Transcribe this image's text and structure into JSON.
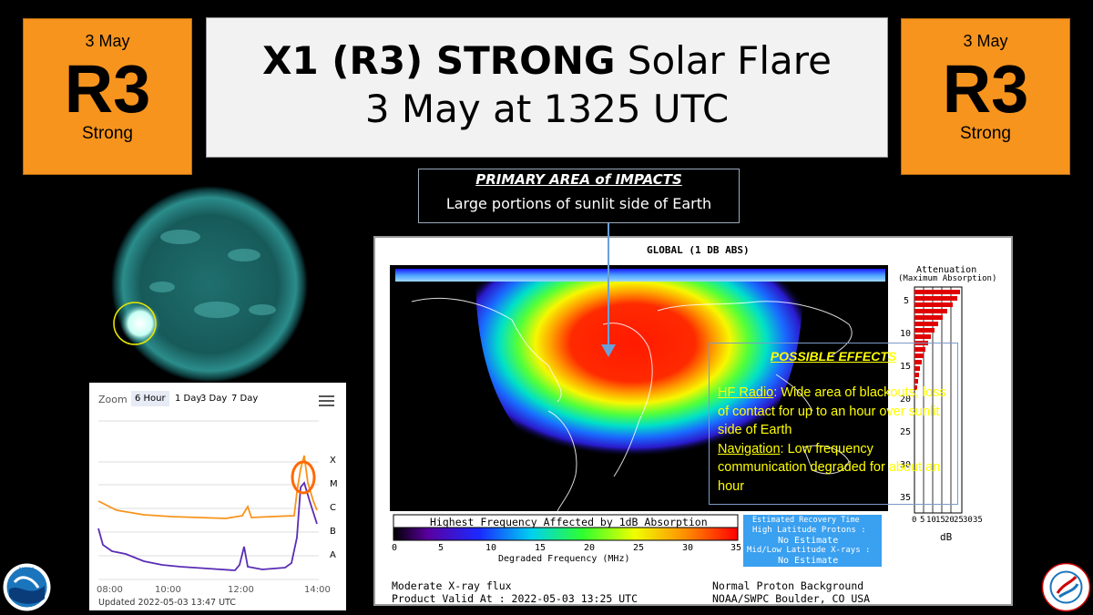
{
  "badges": [
    {
      "date": "3 May",
      "scale": "R3",
      "level": "Strong"
    },
    {
      "date": "3 May",
      "scale": "R3",
      "level": "Strong"
    }
  ],
  "title": {
    "bold": "X1 (R3) STRONG",
    "rest": " Solar Flare",
    "line2": "3 May at 1325 UTC"
  },
  "impact": {
    "heading": "PRIMARY AREA of IMPACTS",
    "text": "Large portions of sunlit side of Earth"
  },
  "effects": {
    "heading": "POSSIBLE EFFECTS",
    "hf_label": "HF Radio",
    "hf_text": ": Wide area of blackouts; loss of contact for up to an hour over sunlit side of Earth",
    "nav_label": "Navigation",
    "nav_text": ": Low frequency communication degraded for about an hour"
  },
  "goes_chart": {
    "zoom_label": "Zoom",
    "zoom_options": [
      "6 Hour",
      "1 Day",
      "3 Day",
      "7 Day"
    ],
    "selected_zoom": "6 Hour",
    "class_labels": [
      "X",
      "M",
      "C",
      "B",
      "A"
    ],
    "x_ticks": [
      "08:00",
      "10:00",
      "12:00",
      "14:00"
    ],
    "updated": "Updated 2022-05-03 13:47 UTC",
    "colors": {
      "long": "#f7941d",
      "short": "#5a2db5",
      "highlight": "#ff6a00"
    }
  },
  "dmap": {
    "title": "GLOBAL (1 DB ABS)",
    "attenuation_title": "Attenuation",
    "attenuation_sub": "(Maximum Absorption)",
    "left_ticks": [
      "5",
      "10",
      "15",
      "20",
      "25",
      "30",
      "35"
    ],
    "db_ticks": [
      "0",
      "5",
      "10",
      "15",
      "20",
      "25",
      "30",
      "35"
    ],
    "db_label": "dB",
    "scale_title": "Highest Frequency Affected by 1dB Absorption",
    "scale_ticks": [
      "0",
      "5",
      "10",
      "15",
      "20",
      "25",
      "30",
      "35"
    ],
    "scale_label": "Degraded Frequency (MHz)",
    "recovery": {
      "title": "Estimated Recovery Time",
      "high_lat": "High Latitude Protons :",
      "high_val": "No Estimate",
      "mid_lat": "Mid/Low Latitude X-rays :",
      "mid_val": "No Estimate"
    },
    "footer_left1": "Moderate X-ray flux",
    "footer_left2": "Product Valid At : 2022-05-03 13:25 UTC",
    "footer_right1": "Normal Proton Background",
    "footer_right2": "NOAA/SWPC Boulder, CO USA"
  },
  "logos": {
    "noaa": "NOAA",
    "nws": "NATIONAL WEATHER SERVICE"
  }
}
